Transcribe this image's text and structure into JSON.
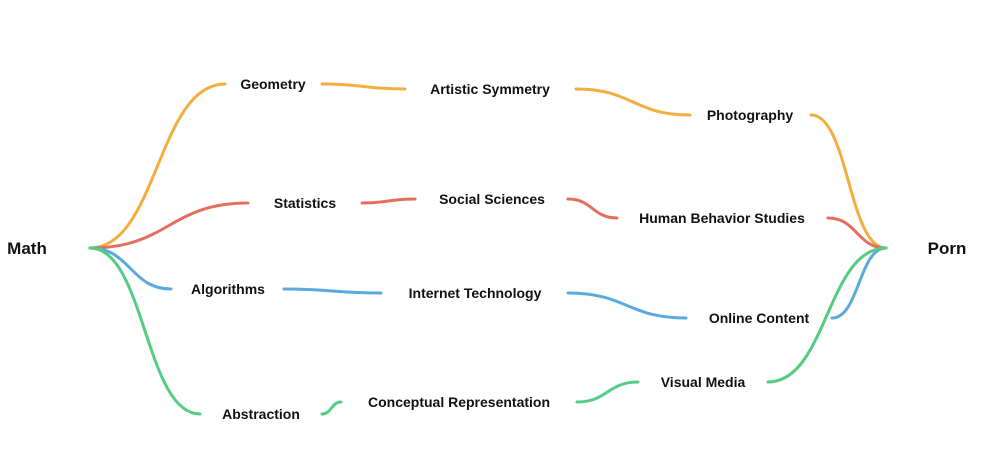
{
  "nodes": {
    "math": "Math",
    "porn": "Porn",
    "geometry": "Geometry",
    "artistic_symmetry": "Artistic Symmetry",
    "photography": "Photography",
    "statistics": "Statistics",
    "social_sciences": "Social Sciences",
    "human_behavior": "Human Behavior Studies",
    "algorithms": "Algorithms",
    "internet_technology": "Internet Technology",
    "online_content": "Online Content",
    "abstraction": "Abstraction",
    "conceptual_representation": "Conceptual Representation",
    "visual_media": "Visual Media"
  },
  "paths": [
    {
      "color": "#F2AE3F",
      "chain": [
        "math",
        "geometry",
        "artistic_symmetry",
        "photography",
        "porn"
      ]
    },
    {
      "color": "#E46F5E",
      "chain": [
        "math",
        "statistics",
        "social_sciences",
        "human_behavior",
        "porn"
      ]
    },
    {
      "color": "#5BAADC",
      "chain": [
        "math",
        "algorithms",
        "internet_technology",
        "online_content",
        "porn"
      ]
    },
    {
      "color": "#54CC82",
      "chain": [
        "math",
        "abstraction",
        "conceptual_representation",
        "visual_media",
        "porn"
      ]
    }
  ]
}
